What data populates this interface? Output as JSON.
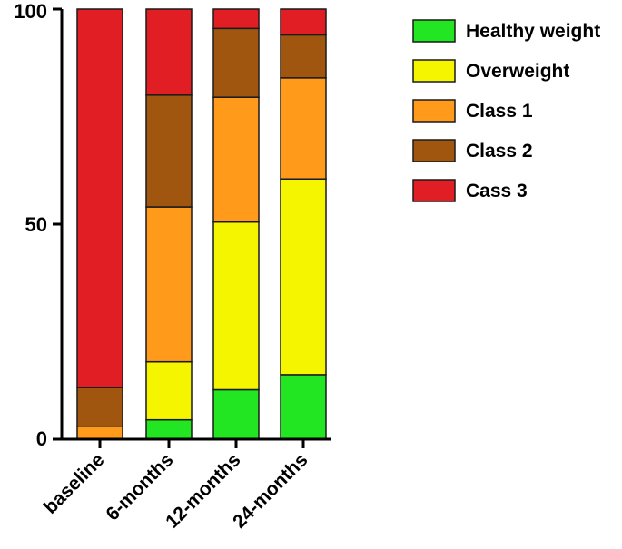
{
  "chart_data": {
    "type": "bar",
    "stacked": true,
    "title": "",
    "xlabel": "",
    "ylabel": "",
    "ylim": [
      0,
      100
    ],
    "yticks": [
      0,
      50,
      100
    ],
    "categories": [
      "baseline",
      "6-months",
      "12-months",
      "24-months"
    ],
    "series": [
      {
        "name": "Healthy weight",
        "color": "#22e622",
        "values": [
          0,
          4.5,
          11.5,
          15
        ]
      },
      {
        "name": "Overweight",
        "color": "#f5f500",
        "values": [
          0,
          13.5,
          39,
          45.5
        ]
      },
      {
        "name": "Class 1",
        "color": "#ff9a1a",
        "values": [
          3,
          36,
          29,
          23.5
        ]
      },
      {
        "name": "Class 2",
        "color": "#a0560f",
        "values": [
          9,
          26,
          16,
          10
        ]
      },
      {
        "name": "Cass 3",
        "color": "#e01e24",
        "values": [
          88,
          20,
          4.5,
          6
        ]
      }
    ],
    "legend_position": "top-right",
    "grid": false
  }
}
